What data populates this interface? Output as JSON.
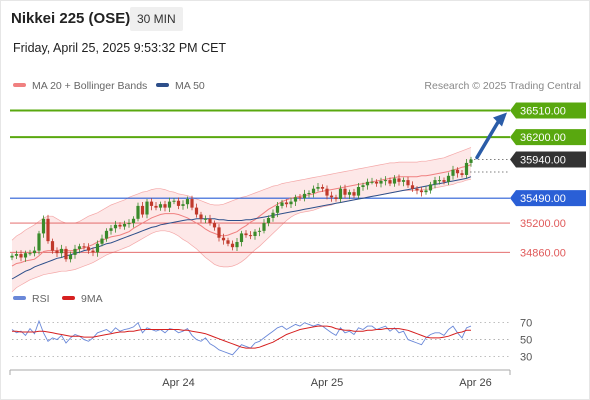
{
  "header": {
    "title": "Nikkei 225 (OSE)",
    "interval": "30 MIN",
    "datetime": "Friday, April 25, 2025 9:53:32 PM CET"
  },
  "legend": {
    "bollinger_label": "MA 20 + Bollinger Bands",
    "ma50_label": "MA 50",
    "credit": "Research © 2025 Trading Central"
  },
  "rsi_legend": {
    "rsi_label": "RSI",
    "ma_label": "9MA"
  },
  "colors": {
    "up_candle": "#3a8a2a",
    "down_candle": "#c0392b",
    "resistance": "#59a80f",
    "current": "#333333",
    "pivot": "#2a5fd6",
    "support": "#e05a5a",
    "ma20": "#f08080",
    "bands_fill": "#fbd5d5",
    "ma50": "#2d4f8a",
    "rsi": "#6a88d8",
    "rsi_ma": "#d62020",
    "arrow": "#2a5ca8"
  },
  "chart_data": {
    "type": "candlestick",
    "y_range": [
      34480,
      36690
    ],
    "levels": [
      {
        "value": 36510,
        "label": "36510.00",
        "kind": "resistance"
      },
      {
        "value": 36200,
        "label": "36200.00",
        "kind": "resistance"
      },
      {
        "value": 35940,
        "label": "35940.00",
        "kind": "current"
      },
      {
        "value": 35490,
        "label": "35490.00",
        "kind": "pivot"
      },
      {
        "value": 35200,
        "label": "35200.00",
        "kind": "support"
      },
      {
        "value": 34860,
        "label": "34860.00",
        "kind": "support"
      }
    ],
    "x_ticks": [
      {
        "label": "Apr 24",
        "bar": 37
      },
      {
        "label": "Apr 25",
        "bar": 70
      },
      {
        "label": "Apr 26",
        "bar": 103
      }
    ],
    "close": [
      34820,
      34840,
      34800,
      34850,
      34850,
      34880,
      35080,
      35250,
      34990,
      34880,
      34850,
      34900,
      34780,
      34830,
      34900,
      34930,
      34920,
      34880,
      34860,
      34960,
      35020,
      35110,
      35140,
      35180,
      35160,
      35190,
      35200,
      35250,
      35400,
      35300,
      35450,
      35400,
      35380,
      35420,
      35380,
      35450,
      35460,
      35400,
      35420,
      35480,
      35380,
      35300,
      35250,
      35250,
      35200,
      35150,
      35030,
      35000,
      34960,
      34920,
      34980,
      35080,
      35060,
      35050,
      35100,
      35110,
      35200,
      35260,
      35320,
      35400,
      35440,
      35420,
      35450,
      35500,
      35490,
      35540,
      35550,
      35600,
      35620,
      35600,
      35520,
      35500,
      35480,
      35600,
      35530,
      35560,
      35520,
      35620,
      35640,
      35680,
      35680,
      35660,
      35690,
      35700,
      35660,
      35720,
      35680,
      35700,
      35640,
      35600,
      35580,
      35560,
      35580,
      35650,
      35700,
      35700,
      35680,
      35750,
      35820,
      35780,
      35760,
      35900,
      35940
    ],
    "ma20": [
      34700,
      34730,
      34740,
      34760,
      34770,
      34780,
      34820,
      34870,
      34880,
      34880,
      34880,
      34890,
      34880,
      34880,
      34880,
      34900,
      34910,
      34930,
      34950,
      34980,
      35000,
      35020,
      35040,
      35050,
      35060,
      35080,
      35100,
      35140,
      35170,
      35200,
      35230,
      35260,
      35280,
      35300,
      35310,
      35310,
      35310,
      35300,
      35280,
      35260,
      35230,
      35200,
      35170,
      35130,
      35100,
      35080,
      35060,
      35050,
      35060,
      35080,
      35100,
      35140,
      35170,
      35210,
      35240,
      35280,
      35320,
      35360,
      35390,
      35420,
      35450,
      35470,
      35490,
      35500,
      35510,
      35520,
      35530,
      35540,
      35560,
      35570,
      35580,
      35590,
      35600,
      35610,
      35620,
      35630,
      35640,
      35650,
      35660,
      35670,
      35680,
      35690,
      35700,
      35710,
      35720,
      35730,
      35740,
      35740,
      35740,
      35740,
      35740,
      35750,
      35750,
      35760,
      35770,
      35780,
      35790,
      35800,
      35820,
      35830,
      35850,
      35860,
      35880
    ],
    "bb_upper": [
      35000,
      35050,
      35080,
      35120,
      35150,
      35180,
      35220,
      35260,
      35280,
      35280,
      35250,
      35220,
      35200,
      35200,
      35200,
      35220,
      35250,
      35280,
      35300,
      35320,
      35350,
      35380,
      35410,
      35430,
      35450,
      35470,
      35500,
      35520,
      35540,
      35560,
      35570,
      35590,
      35600,
      35600,
      35590,
      35570,
      35560,
      35540,
      35530,
      35520,
      35500,
      35480,
      35460,
      35440,
      35420,
      35410,
      35410,
      35420,
      35440,
      35460,
      35480,
      35500,
      35510,
      35530,
      35550,
      35570,
      35590,
      35610,
      35630,
      35640,
      35660,
      35670,
      35680,
      35690,
      35700,
      35710,
      35720,
      35730,
      35740,
      35750,
      35760,
      35770,
      35780,
      35790,
      35800,
      35810,
      35820,
      35830,
      35840,
      35850,
      35860,
      35870,
      35880,
      35890,
      35900,
      35900,
      35910,
      35910,
      35910,
      35910,
      35910,
      35920,
      35920,
      35930,
      35940,
      35950,
      35960,
      35980,
      36000,
      36020,
      36040,
      36060,
      36080
    ],
    "bb_lower": [
      34400,
      34450,
      34480,
      34510,
      34540,
      34560,
      34580,
      34600,
      34610,
      34620,
      34630,
      34640,
      34640,
      34650,
      34660,
      34680,
      34700,
      34720,
      34740,
      34770,
      34800,
      34830,
      34850,
      34870,
      34890,
      34910,
      34930,
      34960,
      34990,
      35020,
      35050,
      35080,
      35100,
      35110,
      35110,
      35100,
      35080,
      35050,
      35010,
      34980,
      34940,
      34900,
      34850,
      34800,
      34760,
      34720,
      34700,
      34690,
      34690,
      34700,
      34720,
      34750,
      34790,
      34840,
      34890,
      34930,
      34980,
      35030,
      35080,
      35130,
      35180,
      35230,
      35270,
      35300,
      35320,
      35330,
      35340,
      35350,
      35370,
      35390,
      35400,
      35410,
      35430,
      35440,
      35450,
      35460,
      35470,
      35480,
      35490,
      35500,
      35510,
      35520,
      35530,
      35540,
      35550,
      35560,
      35570,
      35580,
      35580,
      35580,
      35580,
      35590,
      35590,
      35600,
      35610,
      35620,
      35630,
      35640,
      35650,
      35670,
      35680,
      35700,
      35710
    ],
    "ma50": [
      34550,
      34580,
      34610,
      34640,
      34660,
      34690,
      34710,
      34730,
      34750,
      34770,
      34790,
      34800,
      34820,
      34830,
      34850,
      34860,
      34880,
      34890,
      34910,
      34920,
      34940,
      34960,
      34970,
      34990,
      35010,
      35030,
      35050,
      35070,
      35090,
      35110,
      35130,
      35150,
      35160,
      35180,
      35190,
      35200,
      35210,
      35220,
      35230,
      35240,
      35240,
      35250,
      35250,
      35250,
      35250,
      35250,
      35240,
      35240,
      35230,
      35230,
      35230,
      35230,
      35240,
      35240,
      35250,
      35260,
      35270,
      35280,
      35290,
      35300,
      35310,
      35320,
      35330,
      35340,
      35350,
      35360,
      35370,
      35380,
      35390,
      35400,
      35410,
      35420,
      35430,
      35440,
      35450,
      35460,
      35470,
      35480,
      35490,
      35500,
      35510,
      35520,
      35530,
      35540,
      35550,
      35560,
      35570,
      35580,
      35590,
      35600,
      35610,
      35620,
      35630,
      35640,
      35650,
      35660,
      35670,
      35680,
      35690,
      35700,
      35710,
      35720,
      35740
    ],
    "rsi": [
      62,
      58,
      60,
      55,
      63,
      57,
      72,
      58,
      48,
      52,
      50,
      55,
      46,
      52,
      56,
      54,
      50,
      48,
      52,
      58,
      60,
      62,
      58,
      64,
      60,
      62,
      63,
      65,
      70,
      58,
      64,
      62,
      60,
      62,
      58,
      63,
      62,
      58,
      60,
      63,
      55,
      50,
      48,
      52,
      45,
      42,
      38,
      36,
      34,
      32,
      38,
      44,
      42,
      40,
      46,
      48,
      52,
      56,
      60,
      64,
      66,
      62,
      65,
      68,
      66,
      70,
      68,
      66,
      68,
      66,
      62,
      58,
      55,
      64,
      58,
      60,
      56,
      64,
      62,
      66,
      66,
      62,
      64,
      66,
      60,
      64,
      58,
      60,
      50,
      48,
      46,
      44,
      52,
      56,
      58,
      58,
      55,
      62,
      66,
      58,
      52,
      64,
      66
    ],
    "rsi_ma": [
      60,
      60,
      59,
      59,
      59,
      59,
      60,
      60,
      59,
      58,
      57,
      56,
      55,
      54,
      54,
      54,
      53,
      53,
      53,
      54,
      55,
      56,
      57,
      58,
      59,
      59,
      60,
      60,
      61,
      62,
      62,
      62,
      62,
      62,
      62,
      62,
      62,
      62,
      61,
      61,
      60,
      59,
      58,
      57,
      55,
      53,
      51,
      49,
      47,
      45,
      43,
      41,
      40,
      40,
      40,
      41,
      43,
      45,
      47,
      50,
      53,
      56,
      58,
      60,
      62,
      63,
      64,
      65,
      66,
      66,
      66,
      65,
      63,
      62,
      61,
      61,
      60,
      60,
      60,
      61,
      61,
      62,
      62,
      63,
      63,
      63,
      63,
      62,
      61,
      59,
      57,
      55,
      53,
      52,
      52,
      52,
      53,
      54,
      56,
      58,
      59,
      61,
      61
    ],
    "rsi_ticks": [
      70,
      50,
      30
    ]
  }
}
